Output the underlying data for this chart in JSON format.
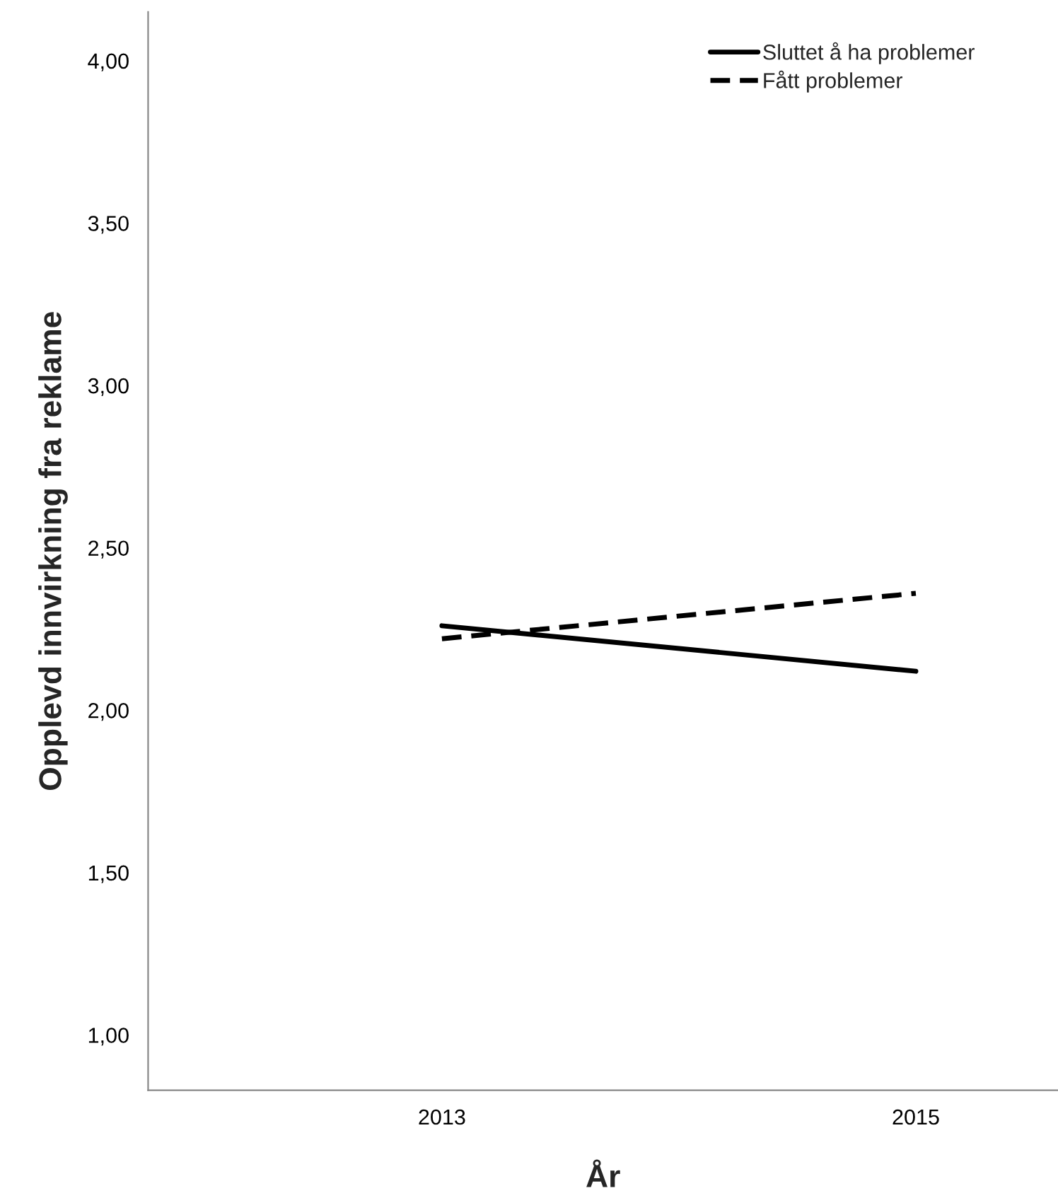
{
  "chart_data": {
    "type": "line",
    "xlabel": "År",
    "ylabel": "Opplevd innvirkning fra reklame",
    "x": [
      2013,
      2015
    ],
    "xlim": [
      2011.76,
      2015.6
    ],
    "xticks": [
      2013,
      2015
    ],
    "series": [
      {
        "name": "Sluttet å ha problemer",
        "color": "#000000",
        "line_style": "solid",
        "values": [
          2.26,
          2.12
        ]
      },
      {
        "name": "Fått problemer",
        "color": "#000000",
        "line_style": "dashed",
        "values": [
          2.22,
          2.36
        ]
      }
    ],
    "ylim": [
      0.83,
      4.15
    ],
    "yticks": [
      {
        "value": 1,
        "label": "1,00"
      },
      {
        "value": 1.5,
        "label": "1,50"
      },
      {
        "value": 2,
        "label": "2,00"
      },
      {
        "value": 2.5,
        "label": "2,50"
      },
      {
        "value": 3,
        "label": "3,00"
      },
      {
        "value": 3.5,
        "label": "3,50"
      },
      {
        "value": 4,
        "label": "4,00"
      }
    ],
    "grid": false,
    "legend": "top right"
  }
}
